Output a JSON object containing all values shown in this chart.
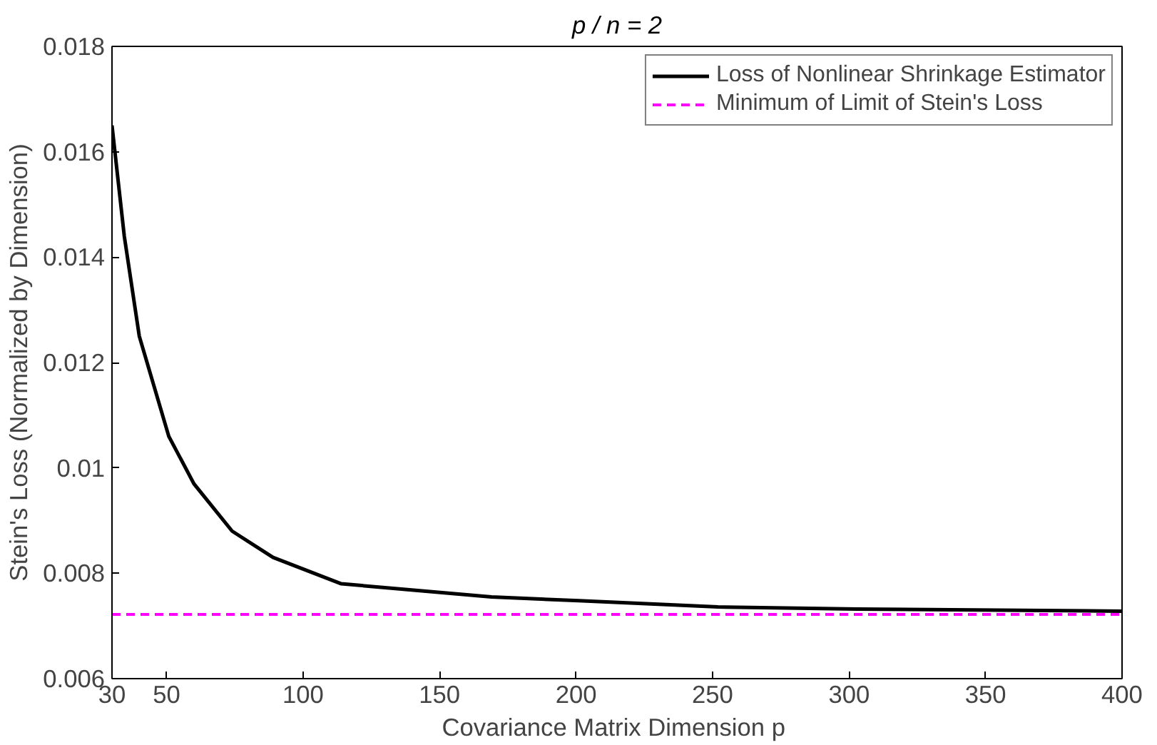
{
  "chart_data": {
    "type": "line",
    "title": "p / n = 2",
    "xlabel": "Covariance Matrix Dimension  p",
    "ylabel": "Stein's Loss (Normalized by Dimension)",
    "x": [
      30,
      34.5,
      40,
      50.8,
      60,
      74,
      89,
      114,
      136,
      169,
      201,
      252,
      303,
      400
    ],
    "series": [
      {
        "name": "Loss of Nonlinear Shrinkage Estimator",
        "color": "#000000",
        "values": [
          0.0165,
          0.0144,
          0.0125,
          0.0106,
          0.0097,
          0.0088,
          0.0083,
          0.0078,
          0.0077,
          0.00755,
          0.00748,
          0.00736,
          0.00732,
          0.00728
        ]
      }
    ],
    "ref_lines": [
      {
        "axis": "y",
        "value": 0.00722,
        "label": "Minimum of Limit of Stein's Loss",
        "color": "#ff00ff",
        "line_style": "dashed"
      }
    ],
    "xlim": [
      30,
      400
    ],
    "xticks": [
      30,
      50,
      100,
      150,
      200,
      250,
      300,
      350,
      400
    ],
    "ylim": [
      0.006,
      0.018
    ],
    "yticks": [
      {
        "value": 0.006,
        "label": "0.006"
      },
      {
        "value": 0.008,
        "label": "0.008"
      },
      {
        "value": 0.01,
        "label": "0.01"
      },
      {
        "value": 0.012,
        "label": "0.012"
      },
      {
        "value": 0.014,
        "label": "0.014"
      },
      {
        "value": 0.016,
        "label": "0.016"
      },
      {
        "value": 0.018,
        "label": "0.018"
      }
    ],
    "grid": false,
    "legend": "top right",
    "line_style": "solid",
    "marker": "none"
  }
}
